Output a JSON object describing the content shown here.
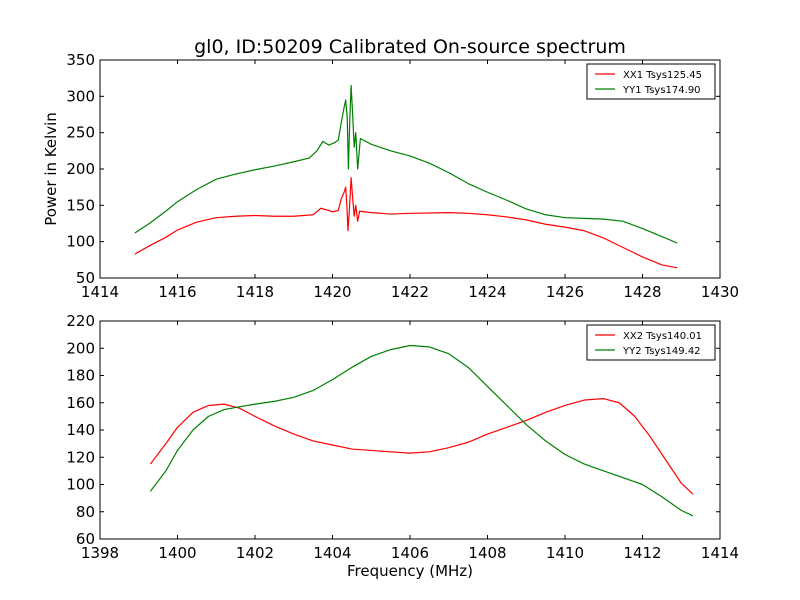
{
  "figure": {
    "title": "gl0, ID:50209 Calibrated On-source spectrum",
    "ylabel": "Power in Kelvin",
    "xlabel": "Frequency (MHz)"
  },
  "chart_data": [
    {
      "type": "line",
      "xlim": [
        1414,
        1430
      ],
      "ylim": [
        50,
        350
      ],
      "xticks": [
        1414,
        1416,
        1418,
        1420,
        1422,
        1424,
        1426,
        1428,
        1430
      ],
      "yticks": [
        50,
        100,
        150,
        200,
        250,
        300,
        350
      ],
      "grid": false,
      "legend_position": "top-right",
      "series": [
        {
          "name": "XX1 Tsys125.45",
          "color": "#ff0000",
          "points": [
            [
              1414.9,
              83
            ],
            [
              1415.3,
              95
            ],
            [
              1415.7,
              106
            ],
            [
              1416.0,
              116
            ],
            [
              1416.5,
              127
            ],
            [
              1417.0,
              133
            ],
            [
              1417.5,
              135
            ],
            [
              1418.0,
              136
            ],
            [
              1418.5,
              135
            ],
            [
              1419.0,
              135
            ],
            [
              1419.5,
              137
            ],
            [
              1419.7,
              146
            ],
            [
              1419.9,
              143
            ],
            [
              1420.0,
              141
            ],
            [
              1420.15,
              143
            ],
            [
              1420.22,
              158
            ],
            [
              1420.3,
              168
            ],
            [
              1420.34,
              175
            ],
            [
              1420.37,
              150
            ],
            [
              1420.4,
              115
            ],
            [
              1420.44,
              148
            ],
            [
              1420.48,
              188
            ],
            [
              1420.52,
              160
            ],
            [
              1420.56,
              135
            ],
            [
              1420.6,
              150
            ],
            [
              1420.65,
              128
            ],
            [
              1420.7,
              142
            ],
            [
              1421.0,
              140
            ],
            [
              1421.5,
              138
            ],
            [
              1422.0,
              139
            ],
            [
              1423.0,
              140
            ],
            [
              1423.5,
              139
            ],
            [
              1424.0,
              137
            ],
            [
              1424.5,
              134
            ],
            [
              1425.0,
              130
            ],
            [
              1425.5,
              124
            ],
            [
              1426.0,
              120
            ],
            [
              1426.5,
              115
            ],
            [
              1427.0,
              105
            ],
            [
              1427.5,
              92
            ],
            [
              1428.0,
              79
            ],
            [
              1428.5,
              68
            ],
            [
              1428.9,
              64
            ]
          ]
        },
        {
          "name": "YY1 Tsys174.90",
          "color": "#008000",
          "points": [
            [
              1414.9,
              112
            ],
            [
              1415.3,
              126
            ],
            [
              1415.7,
              142
            ],
            [
              1416.0,
              155
            ],
            [
              1416.5,
              172
            ],
            [
              1417.0,
              186
            ],
            [
              1417.5,
              193
            ],
            [
              1418.0,
              199
            ],
            [
              1418.5,
              204
            ],
            [
              1419.0,
              210
            ],
            [
              1419.4,
              215
            ],
            [
              1419.6,
              225
            ],
            [
              1419.75,
              238
            ],
            [
              1419.9,
              233
            ],
            [
              1420.05,
              236
            ],
            [
              1420.15,
              240
            ],
            [
              1420.22,
              262
            ],
            [
              1420.3,
              285
            ],
            [
              1420.34,
              295
            ],
            [
              1420.38,
              270
            ],
            [
              1420.41,
              200
            ],
            [
              1420.44,
              258
            ],
            [
              1420.48,
              315
            ],
            [
              1420.52,
              275
            ],
            [
              1420.56,
              230
            ],
            [
              1420.6,
              250
            ],
            [
              1420.65,
              200
            ],
            [
              1420.72,
              242
            ],
            [
              1421.0,
              234
            ],
            [
              1421.5,
              225
            ],
            [
              1422.0,
              218
            ],
            [
              1422.5,
              208
            ],
            [
              1423.0,
              195
            ],
            [
              1423.5,
              180
            ],
            [
              1424.0,
              168
            ],
            [
              1424.5,
              157
            ],
            [
              1425.0,
              145
            ],
            [
              1425.5,
              137
            ],
            [
              1426.0,
              133
            ],
            [
              1426.5,
              132
            ],
            [
              1427.0,
              131
            ],
            [
              1427.5,
              128
            ],
            [
              1428.0,
              118
            ],
            [
              1428.5,
              107
            ],
            [
              1428.9,
              98
            ]
          ]
        }
      ]
    },
    {
      "type": "line",
      "xlim": [
        1398,
        1414
      ],
      "ylim": [
        60,
        220
      ],
      "xticks": [
        1398,
        1400,
        1402,
        1404,
        1406,
        1408,
        1410,
        1412,
        1414
      ],
      "yticks": [
        60,
        80,
        100,
        120,
        140,
        160,
        180,
        200,
        220
      ],
      "grid": false,
      "legend_position": "top-right",
      "series": [
        {
          "name": "XX2 Tsys140.01",
          "color": "#ff0000",
          "points": [
            [
              1399.3,
              115
            ],
            [
              1399.7,
              130
            ],
            [
              1400.0,
              142
            ],
            [
              1400.4,
              153
            ],
            [
              1400.8,
              158
            ],
            [
              1401.2,
              159
            ],
            [
              1401.6,
              156
            ],
            [
              1402.0,
              150
            ],
            [
              1402.5,
              143
            ],
            [
              1403.0,
              137
            ],
            [
              1403.5,
              132
            ],
            [
              1404.0,
              129
            ],
            [
              1404.5,
              126
            ],
            [
              1405.0,
              125
            ],
            [
              1405.5,
              124
            ],
            [
              1406.0,
              123
            ],
            [
              1406.5,
              124
            ],
            [
              1407.0,
              127
            ],
            [
              1407.5,
              131
            ],
            [
              1408.0,
              137
            ],
            [
              1408.5,
              142
            ],
            [
              1409.0,
              147
            ],
            [
              1409.5,
              153
            ],
            [
              1410.0,
              158
            ],
            [
              1410.5,
              162
            ],
            [
              1411.0,
              163
            ],
            [
              1411.4,
              160
            ],
            [
              1411.8,
              150
            ],
            [
              1412.2,
              135
            ],
            [
              1412.6,
              118
            ],
            [
              1413.0,
              101
            ],
            [
              1413.3,
              93
            ]
          ]
        },
        {
          "name": "YY2 Tsys149.42",
          "color": "#008000",
          "points": [
            [
              1399.3,
              95
            ],
            [
              1399.7,
              110
            ],
            [
              1400.0,
              125
            ],
            [
              1400.4,
              140
            ],
            [
              1400.8,
              150
            ],
            [
              1401.2,
              155
            ],
            [
              1401.6,
              157
            ],
            [
              1402.0,
              159
            ],
            [
              1402.5,
              161
            ],
            [
              1403.0,
              164
            ],
            [
              1403.5,
              169
            ],
            [
              1404.0,
              177
            ],
            [
              1404.5,
              186
            ],
            [
              1405.0,
              194
            ],
            [
              1405.5,
              199
            ],
            [
              1406.0,
              202
            ],
            [
              1406.5,
              201
            ],
            [
              1407.0,
              196
            ],
            [
              1407.5,
              186
            ],
            [
              1408.0,
              172
            ],
            [
              1408.5,
              158
            ],
            [
              1409.0,
              144
            ],
            [
              1409.5,
              132
            ],
            [
              1410.0,
              122
            ],
            [
              1410.5,
              115
            ],
            [
              1411.0,
              110
            ],
            [
              1411.5,
              105
            ],
            [
              1412.0,
              100
            ],
            [
              1412.5,
              91
            ],
            [
              1413.0,
              81
            ],
            [
              1413.3,
              77
            ]
          ]
        }
      ]
    }
  ]
}
